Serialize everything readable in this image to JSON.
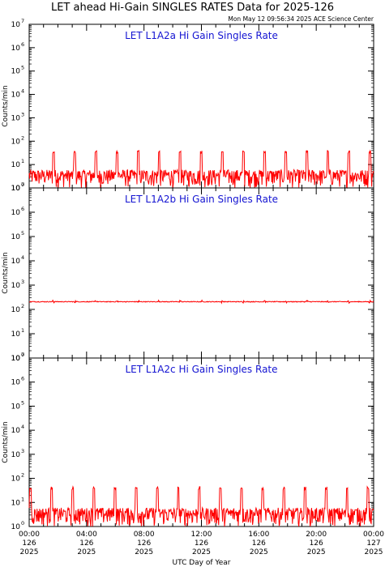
{
  "header": {
    "title": "LET ahead Hi-Gain SINGLES RATES Data for 2025-126",
    "timestamp": "Mon May 12 09:56:34 2025 ACE Science Center"
  },
  "colors": {
    "series": "#ff0000",
    "panel_title": "#1414d2",
    "axis": "#000000"
  },
  "chart_data": [
    {
      "type": "line",
      "title": "LET L1A2a Hi Gain Singles Rate",
      "ylabel": "Counts/min",
      "yscale": "log",
      "ylim": [
        1,
        10000000
      ],
      "xlim": [
        0,
        24
      ],
      "baseline": [
        1,
        6
      ],
      "spike_peak": 40,
      "spike_period_hours": 1.47,
      "spike_first_hour": 1.7
    },
    {
      "type": "line",
      "title": "LET L1A2b Hi Gain Singles Rate",
      "ylabel": "Counts/min",
      "yscale": "log",
      "ylim": [
        1,
        10000000
      ],
      "xlim": [
        0,
        24
      ],
      "baseline": [
        200,
        215
      ],
      "spike_peak": 240,
      "spike_period_hours": 1.47,
      "spike_first_hour": 1.7
    },
    {
      "type": "line",
      "title": "LET L1A2c Hi Gain Singles Rate",
      "ylabel": "Counts/min",
      "yscale": "log",
      "ylim": [
        1,
        10000000
      ],
      "xlim": [
        0,
        24
      ],
      "baseline": [
        1,
        6
      ],
      "spike_peak": 45,
      "spike_period_hours": 1.47,
      "spike_first_hour": 0.1
    }
  ],
  "xaxis": {
    "label": "UTC Day of Year",
    "ticks": [
      {
        "hour": 0,
        "time": "00:00",
        "doy": "126",
        "year": "2025"
      },
      {
        "hour": 4,
        "time": "04:00",
        "doy": "126",
        "year": "2025"
      },
      {
        "hour": 8,
        "time": "08:00",
        "doy": "126",
        "year": "2025"
      },
      {
        "hour": 12,
        "time": "12:00",
        "doy": "126",
        "year": "2025"
      },
      {
        "hour": 16,
        "time": "16:00",
        "doy": "126",
        "year": "2025"
      },
      {
        "hour": 20,
        "time": "20:00",
        "doy": "126",
        "year": "2025"
      },
      {
        "hour": 24,
        "time": "00:00",
        "doy": "127",
        "year": "2025"
      }
    ]
  }
}
